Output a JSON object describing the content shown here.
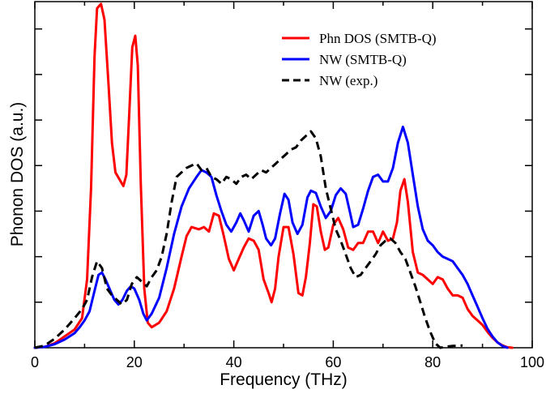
{
  "chart_data": {
    "type": "line",
    "xlabel": "Frequency (THz)",
    "ylabel": "Phonon DOS (a.u.)",
    "xlim": [
      0,
      100
    ],
    "ylim": [
      0,
      7.6
    ],
    "xticks": [
      "0",
      "20",
      "40",
      "60",
      "80",
      "100"
    ],
    "xtick_values": [
      0,
      20,
      40,
      60,
      80,
      100
    ],
    "ytick_values": [
      1,
      2,
      3,
      4,
      5,
      6,
      7
    ],
    "legend_position": "top-right",
    "grid": false,
    "series": [
      {
        "name": "Phn DOS (SMTB-Q)",
        "color": "#ff0000",
        "style": "solid",
        "points": [
          [
            0,
            0
          ],
          [
            2,
            0.02
          ],
          [
            4,
            0.1
          ],
          [
            6,
            0.25
          ],
          [
            8,
            0.4
          ],
          [
            9.5,
            0.65
          ],
          [
            10.5,
            1.5
          ],
          [
            11.3,
            3.5
          ],
          [
            12,
            6.4
          ],
          [
            12.5,
            7.45
          ],
          [
            13.3,
            7.55
          ],
          [
            14,
            7.2
          ],
          [
            14.8,
            5.8
          ],
          [
            15.5,
            4.5
          ],
          [
            16.2,
            3.85
          ],
          [
            17,
            3.7
          ],
          [
            17.8,
            3.55
          ],
          [
            18.4,
            3.8
          ],
          [
            19,
            5.2
          ],
          [
            19.6,
            6.6
          ],
          [
            20.2,
            6.85
          ],
          [
            20.7,
            6.2
          ],
          [
            21.3,
            3.6
          ],
          [
            22,
            1.3
          ],
          [
            22.7,
            0.55
          ],
          [
            23.5,
            0.45
          ],
          [
            25,
            0.55
          ],
          [
            26.5,
            0.8
          ],
          [
            28,
            1.3
          ],
          [
            29.5,
            2.0
          ],
          [
            30.5,
            2.45
          ],
          [
            31.5,
            2.65
          ],
          [
            33,
            2.6
          ],
          [
            34,
            2.65
          ],
          [
            35,
            2.55
          ],
          [
            36,
            2.95
          ],
          [
            37,
            2.9
          ],
          [
            38,
            2.45
          ],
          [
            39,
            1.95
          ],
          [
            40,
            1.7
          ],
          [
            41,
            1.95
          ],
          [
            42,
            2.2
          ],
          [
            43,
            2.4
          ],
          [
            44,
            2.35
          ],
          [
            45,
            2.15
          ],
          [
            46,
            1.5
          ],
          [
            47,
            1.2
          ],
          [
            47.6,
            1.0
          ],
          [
            48.3,
            1.3
          ],
          [
            49,
            2.0
          ],
          [
            50,
            2.65
          ],
          [
            51,
            2.65
          ],
          [
            52,
            2.05
          ],
          [
            53,
            1.2
          ],
          [
            53.8,
            1.15
          ],
          [
            54.5,
            1.55
          ],
          [
            55.3,
            2.3
          ],
          [
            56,
            3.15
          ],
          [
            56.7,
            3.1
          ],
          [
            57.5,
            2.55
          ],
          [
            58.3,
            2.15
          ],
          [
            59,
            2.2
          ],
          [
            60,
            2.7
          ],
          [
            61,
            2.85
          ],
          [
            62,
            2.6
          ],
          [
            63,
            2.2
          ],
          [
            64,
            2.15
          ],
          [
            65,
            2.3
          ],
          [
            66,
            2.3
          ],
          [
            67,
            2.55
          ],
          [
            68,
            2.55
          ],
          [
            69,
            2.3
          ],
          [
            70,
            2.55
          ],
          [
            71,
            2.35
          ],
          [
            72,
            2.4
          ],
          [
            72.8,
            2.75
          ],
          [
            73.5,
            3.45
          ],
          [
            74.3,
            3.7
          ],
          [
            75,
            3.2
          ],
          [
            76,
            2.1
          ],
          [
            77,
            1.65
          ],
          [
            78,
            1.6
          ],
          [
            79,
            1.5
          ],
          [
            80,
            1.4
          ],
          [
            81,
            1.55
          ],
          [
            82,
            1.5
          ],
          [
            83,
            1.3
          ],
          [
            84,
            1.15
          ],
          [
            85,
            1.15
          ],
          [
            86,
            1.1
          ],
          [
            87,
            0.85
          ],
          [
            88,
            0.7
          ],
          [
            89,
            0.6
          ],
          [
            90,
            0.5
          ],
          [
            91,
            0.35
          ],
          [
            92,
            0.22
          ],
          [
            93,
            0.12
          ],
          [
            94,
            0.05
          ],
          [
            95,
            0.01
          ],
          [
            96,
            0
          ]
        ]
      },
      {
        "name": "NW (SMTB-Q)",
        "color": "#0000ff",
        "style": "solid",
        "points": [
          [
            0,
            0
          ],
          [
            2,
            0.02
          ],
          [
            4,
            0.08
          ],
          [
            6,
            0.18
          ],
          [
            8,
            0.32
          ],
          [
            9,
            0.45
          ],
          [
            10,
            0.6
          ],
          [
            11,
            0.8
          ],
          [
            12,
            1.25
          ],
          [
            12.8,
            1.6
          ],
          [
            13.5,
            1.65
          ],
          [
            14.2,
            1.5
          ],
          [
            15,
            1.3
          ],
          [
            16,
            1.05
          ],
          [
            16.8,
            0.95
          ],
          [
            17.6,
            1.05
          ],
          [
            18.5,
            1.25
          ],
          [
            19.3,
            1.35
          ],
          [
            20,
            1.3
          ],
          [
            21,
            1.05
          ],
          [
            21.8,
            0.75
          ],
          [
            22.5,
            0.6
          ],
          [
            23.5,
            0.75
          ],
          [
            25,
            1.1
          ],
          [
            26.5,
            1.75
          ],
          [
            28,
            2.5
          ],
          [
            29.5,
            3.1
          ],
          [
            31,
            3.5
          ],
          [
            32.5,
            3.75
          ],
          [
            33.5,
            3.9
          ],
          [
            34.5,
            3.85
          ],
          [
            35.5,
            3.75
          ],
          [
            36.5,
            3.35
          ],
          [
            37.5,
            3.0
          ],
          [
            38.5,
            2.7
          ],
          [
            39.5,
            2.55
          ],
          [
            40.5,
            2.75
          ],
          [
            41.3,
            2.95
          ],
          [
            42,
            2.8
          ],
          [
            43,
            2.55
          ],
          [
            44,
            2.9
          ],
          [
            45,
            3.0
          ],
          [
            45.8,
            2.7
          ],
          [
            46.5,
            2.4
          ],
          [
            47.5,
            2.25
          ],
          [
            48.3,
            2.4
          ],
          [
            49.3,
            2.95
          ],
          [
            50.2,
            3.38
          ],
          [
            51,
            3.25
          ],
          [
            51.8,
            2.75
          ],
          [
            52.8,
            2.5
          ],
          [
            53.8,
            2.7
          ],
          [
            54.8,
            3.3
          ],
          [
            55.5,
            3.45
          ],
          [
            56.5,
            3.4
          ],
          [
            57.5,
            3.1
          ],
          [
            58.5,
            2.85
          ],
          [
            59.5,
            3.0
          ],
          [
            60.5,
            3.35
          ],
          [
            61.5,
            3.5
          ],
          [
            62.5,
            3.38
          ],
          [
            63.3,
            3.0
          ],
          [
            64,
            2.65
          ],
          [
            65,
            2.7
          ],
          [
            66,
            3.05
          ],
          [
            67,
            3.45
          ],
          [
            68,
            3.75
          ],
          [
            69,
            3.8
          ],
          [
            70,
            3.65
          ],
          [
            71,
            3.65
          ],
          [
            72,
            3.95
          ],
          [
            73,
            4.5
          ],
          [
            74,
            4.85
          ],
          [
            75,
            4.5
          ],
          [
            76,
            3.8
          ],
          [
            77,
            3.1
          ],
          [
            78,
            2.6
          ],
          [
            79,
            2.35
          ],
          [
            80,
            2.25
          ],
          [
            81,
            2.1
          ],
          [
            82,
            2.0
          ],
          [
            83,
            1.95
          ],
          [
            84,
            1.9
          ],
          [
            85,
            1.75
          ],
          [
            86,
            1.6
          ],
          [
            87,
            1.4
          ],
          [
            88,
            1.15
          ],
          [
            89,
            0.9
          ],
          [
            90,
            0.65
          ],
          [
            91,
            0.42
          ],
          [
            92,
            0.25
          ],
          [
            93,
            0.12
          ],
          [
            94,
            0.04
          ],
          [
            95,
            0
          ]
        ]
      },
      {
        "name": "NW (exp.)",
        "color": "#000000",
        "style": "dashed",
        "points": [
          [
            0,
            0
          ],
          [
            2,
            0.05
          ],
          [
            4,
            0.2
          ],
          [
            6,
            0.4
          ],
          [
            8,
            0.65
          ],
          [
            9.5,
            0.85
          ],
          [
            10.5,
            1.05
          ],
          [
            11.5,
            1.55
          ],
          [
            12.5,
            1.9
          ],
          [
            13.5,
            1.75
          ],
          [
            14.5,
            1.3
          ],
          [
            15.5,
            1.15
          ],
          [
            16.5,
            1.05
          ],
          [
            17.5,
            0.95
          ],
          [
            18.5,
            1.05
          ],
          [
            19.5,
            1.4
          ],
          [
            20.5,
            1.55
          ],
          [
            21.5,
            1.45
          ],
          [
            22.5,
            1.35
          ],
          [
            23.5,
            1.55
          ],
          [
            24.5,
            1.7
          ],
          [
            25.5,
            2.0
          ],
          [
            26.5,
            2.5
          ],
          [
            27.5,
            3.2
          ],
          [
            28.5,
            3.75
          ],
          [
            29.5,
            3.85
          ],
          [
            30.5,
            3.95
          ],
          [
            31.5,
            4.0
          ],
          [
            32.5,
            4.05
          ],
          [
            33.5,
            3.9
          ],
          [
            34.5,
            3.95
          ],
          [
            35.5,
            3.75
          ],
          [
            36.5,
            3.7
          ],
          [
            37.5,
            3.6
          ],
          [
            38.5,
            3.75
          ],
          [
            39.5,
            3.7
          ],
          [
            40.5,
            3.6
          ],
          [
            41.5,
            3.75
          ],
          [
            42.5,
            3.8
          ],
          [
            43.5,
            3.7
          ],
          [
            44.5,
            3.8
          ],
          [
            45.5,
            3.9
          ],
          [
            46.5,
            3.85
          ],
          [
            47.5,
            3.95
          ],
          [
            48.5,
            4.05
          ],
          [
            49.5,
            4.15
          ],
          [
            50.5,
            4.25
          ],
          [
            51.5,
            4.35
          ],
          [
            52.5,
            4.4
          ],
          [
            53.5,
            4.55
          ],
          [
            54.5,
            4.65
          ],
          [
            55.5,
            4.75
          ],
          [
            56.5,
            4.6
          ],
          [
            57.5,
            4.2
          ],
          [
            58.5,
            3.5
          ],
          [
            59.5,
            3.05
          ],
          [
            60.5,
            2.6
          ],
          [
            61.5,
            2.35
          ],
          [
            62.5,
            2.05
          ],
          [
            63.5,
            1.75
          ],
          [
            64.5,
            1.55
          ],
          [
            65.5,
            1.6
          ],
          [
            66.5,
            1.75
          ],
          [
            67.5,
            1.9
          ],
          [
            68.5,
            2.05
          ],
          [
            69.5,
            2.25
          ],
          [
            70.5,
            2.35
          ],
          [
            71.5,
            2.4
          ],
          [
            72.5,
            2.3
          ],
          [
            73.5,
            2.1
          ],
          [
            74.5,
            1.95
          ],
          [
            75.5,
            1.65
          ],
          [
            76.5,
            1.35
          ],
          [
            77.5,
            1.0
          ],
          [
            78.5,
            0.65
          ],
          [
            79.5,
            0.35
          ],
          [
            80.5,
            0.1
          ],
          [
            81.5,
            0
          ],
          [
            82.5,
            0.02
          ],
          [
            84,
            0.04
          ],
          [
            86,
            0.05
          ]
        ]
      }
    ]
  }
}
